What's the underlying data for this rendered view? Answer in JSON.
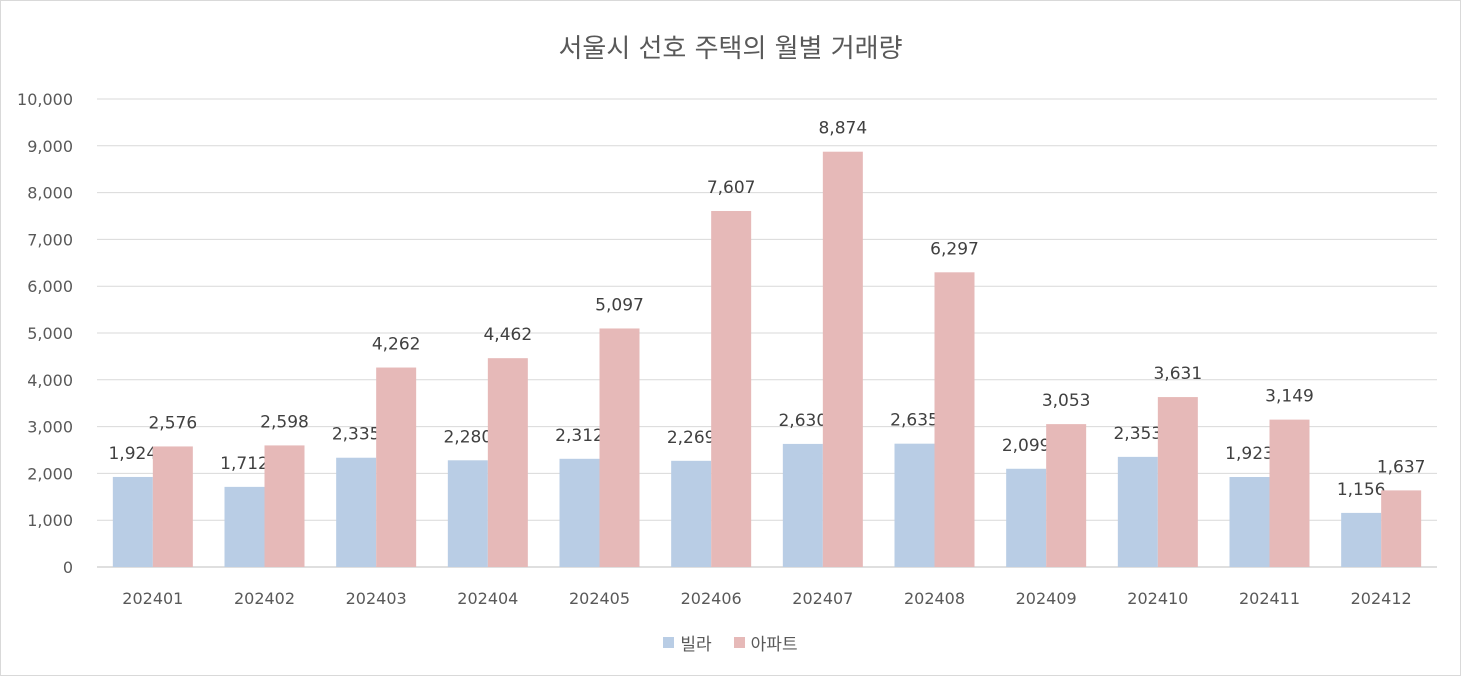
{
  "chart_data": {
    "type": "bar",
    "title": "서울시 선호 주택의 월별 거래량",
    "xlabel": "",
    "ylabel": "",
    "categories": [
      "202401",
      "202402",
      "202403",
      "202404",
      "202405",
      "202406",
      "202407",
      "202408",
      "202409",
      "202410",
      "202411",
      "202412"
    ],
    "series": [
      {
        "name": "빌라",
        "color": "#b9cde5",
        "values": [
          1924,
          1712,
          2335,
          2280,
          2312,
          2269,
          2630,
          2635,
          2099,
          2353,
          1923,
          1156
        ]
      },
      {
        "name": "아파트",
        "color": "#e6b9b8",
        "values": [
          2576,
          2598,
          4262,
          4462,
          5097,
          7607,
          8874,
          6297,
          3053,
          3631,
          3149,
          1637
        ]
      }
    ],
    "ylim": [
      0,
      10000
    ],
    "yticks": [
      0,
      1000,
      2000,
      3000,
      4000,
      5000,
      6000,
      7000,
      8000,
      9000,
      10000
    ],
    "ytick_labels": [
      "0",
      "1,000",
      "2,000",
      "3,000",
      "4,000",
      "5,000",
      "6,000",
      "7,000",
      "8,000",
      "9,000",
      "10,000"
    ],
    "grid": true,
    "legend_position": "bottom",
    "data_labels": true
  }
}
